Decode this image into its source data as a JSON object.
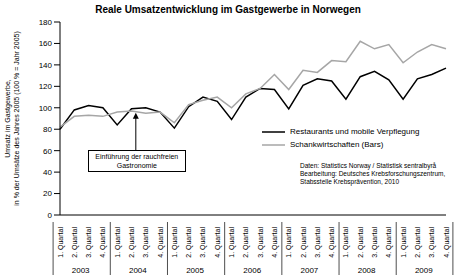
{
  "chart_data": {
    "type": "line",
    "title": "Reale Umsatzentwicklung im Gastgewerbe in Norwegen",
    "ylabel": "Umsatz im Gastgewerbe, in % der Umsätze des Jahres 2005 (100 % = Jahr 2005)",
    "categories": [
      "1. Quartal",
      "2. Quartal",
      "3. Quartal",
      "4. Quartal",
      "1. Quartal",
      "2. Quartal",
      "3. Quartal",
      "4. Quartal",
      "1. Quartal",
      "2. Quartal",
      "3. Quartal",
      "4. Quartal",
      "1. Quartal",
      "2. Quartal",
      "3. Quartal",
      "4. Quartal",
      "1. Quartal",
      "2. Quartal",
      "3. Quartal",
      "4. Quartal",
      "1. Quartal",
      "2. Quartal",
      "3. Quartal",
      "4. Quartal",
      "1. Quartal",
      "2. Quartal",
      "3. Quartal",
      "4. Quartal"
    ],
    "years": [
      "2003",
      "2004",
      "2005",
      "2006",
      "2007",
      "2008",
      "2009"
    ],
    "series": [
      {
        "name": "Restaurants und mobile Verpflegung",
        "color": "#000000",
        "values": [
          80,
          98,
          102,
          100,
          84,
          99,
          100,
          96,
          81,
          101,
          110,
          106,
          89,
          110,
          118,
          117,
          99,
          121,
          127,
          125,
          108,
          129,
          134,
          126,
          108,
          127,
          131,
          137
        ]
      },
      {
        "name": "Schankwirtschaften (Bars)",
        "color": "#a6a6a6",
        "values": [
          82,
          92,
          93,
          92,
          96,
          97,
          95,
          96,
          86,
          103,
          107,
          110,
          100,
          113,
          118,
          131,
          117,
          135,
          133,
          144,
          143,
          162,
          155,
          159,
          142,
          152,
          159,
          155
        ]
      }
    ],
    "ylim": [
      0,
      180
    ],
    "yticks": [
      0,
      20,
      40,
      60,
      80,
      100,
      120,
      140,
      160,
      180
    ],
    "grid": false,
    "annotation": {
      "text": "Einführung der rauchfreien Gastronomie",
      "category": 5
    },
    "source": [
      "Daten: Statistics Norway / Statistisk sentralbyrå",
      "Bearbeitung: Deutsches Krebsforschungszentrum,",
      "Stabsstelle Krebsprävention, 2010"
    ]
  }
}
